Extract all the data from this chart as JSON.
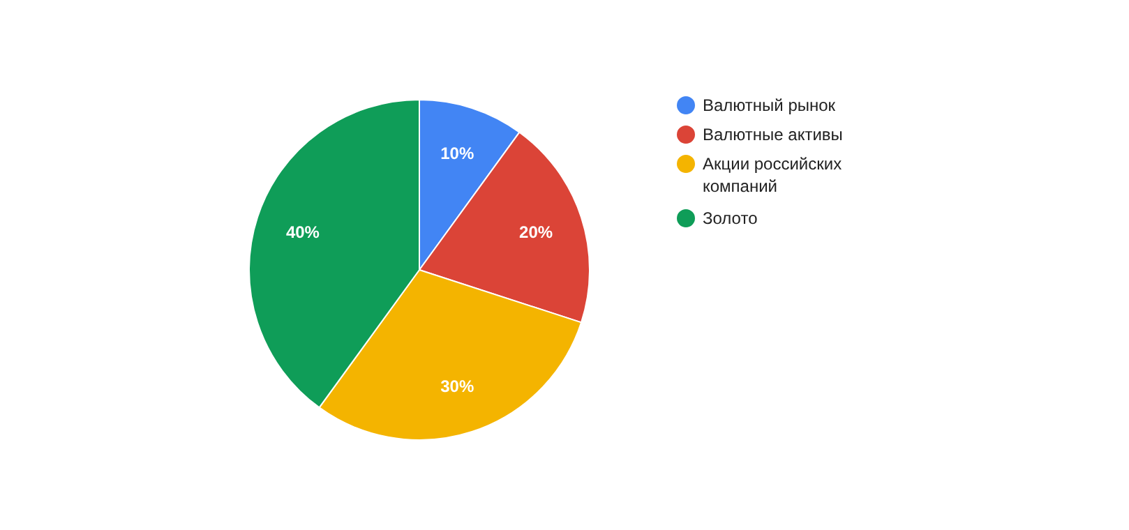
{
  "chart_data": {
    "type": "pie",
    "categories": [
      "Валютный рынок",
      "Валютные активы",
      "Акции российских компаний",
      "Золото"
    ],
    "values": [
      10,
      20,
      30,
      40
    ],
    "colors": [
      "#4285f4",
      "#db4437",
      "#f4b400",
      "#0f9d58"
    ],
    "value_labels": [
      "10%",
      "20%",
      "30%",
      "40%"
    ],
    "legend": "right"
  }
}
